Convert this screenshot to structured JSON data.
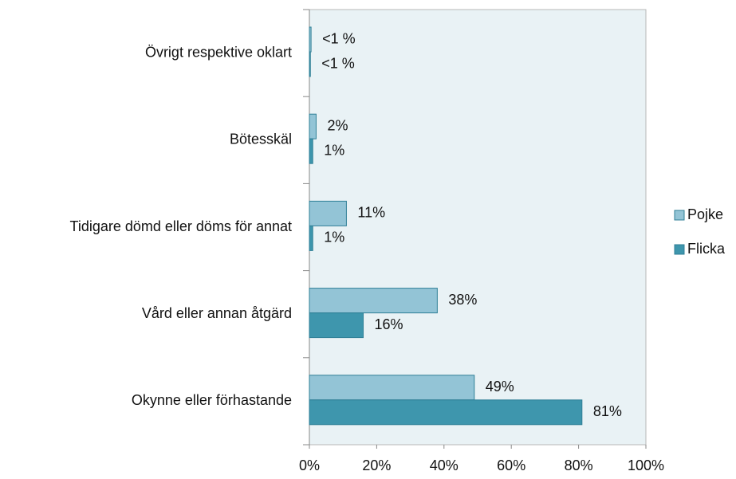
{
  "chart_data": {
    "type": "bar",
    "orientation": "horizontal",
    "categories": [
      "Övrigt respektive oklart",
      "Bötesskäl",
      "Tidigare dömd eller döms för annat",
      "Vård eller annan åtgärd",
      "Okynne eller förhastande"
    ],
    "series": [
      {
        "name": "Pojke",
        "color": "#93c4d6",
        "values": [
          0.5,
          2,
          11,
          38,
          49
        ],
        "value_labels": [
          "<1 %",
          "2%",
          "11%",
          "38%",
          "49%"
        ]
      },
      {
        "name": "Flicka",
        "color": "#3e96ad",
        "values": [
          0.3,
          1,
          1,
          16,
          81
        ],
        "value_labels": [
          "<1 %",
          "1%",
          "1%",
          "16%",
          "81%"
        ]
      }
    ],
    "xlim": [
      0,
      100
    ],
    "xticks": [
      {
        "value": 0,
        "label": "0%"
      },
      {
        "value": 20,
        "label": "20%"
      },
      {
        "value": 40,
        "label": "40%"
      },
      {
        "value": 60,
        "label": "60%"
      },
      {
        "value": 80,
        "label": "80%"
      },
      {
        "value": 100,
        "label": "100%"
      }
    ],
    "legend": "right"
  }
}
